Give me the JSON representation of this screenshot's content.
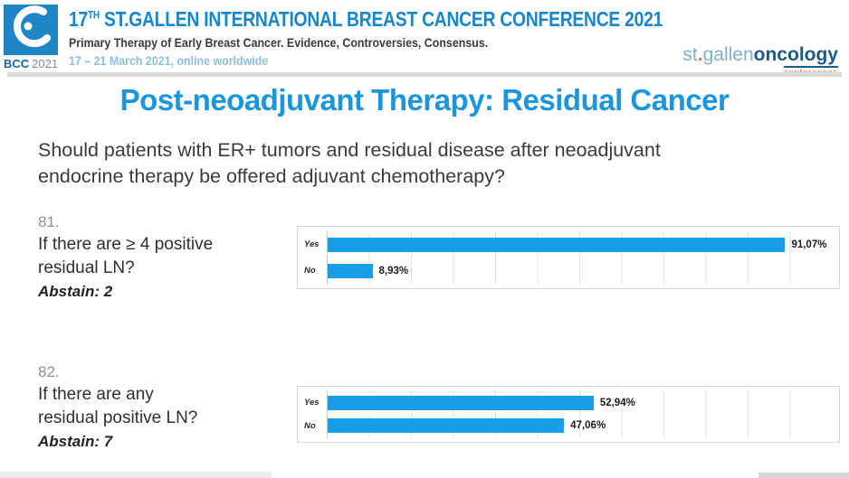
{
  "header": {
    "title_num": "17",
    "title_sup": "TH",
    "title_rest": " ST.GALLEN INTERNATIONAL BREAST CANCER CONFERENCE 2021",
    "subtitle": "Primary Therapy of Early Breast Cancer. Evidence, Controversies, Consensus.",
    "dates": "17 – 21 March 2021, online worldwide",
    "logo_bcc": "BCC",
    "logo_year": "2021",
    "brand_st": "st",
    "brand_dot": ".",
    "brand_gallen": "gallen",
    "brand_oncology": "oncology",
    "brand_conferences": "conferences"
  },
  "main": {
    "title": "Post-neoadjuvant Therapy: Residual Cancer",
    "question_line1": "Should patients with ER+ tumors and residual disease after neoadjuvant",
    "question_line2": "endocrine therapy be offered adjuvant chemotherapy?"
  },
  "polls": [
    {
      "number": "81.",
      "line1": "If there are ≥ 4 positive",
      "line2": "residual LN?",
      "abstain": "Abstain: 2"
    },
    {
      "number": "82.",
      "line1": "If there are any",
      "line2": "residual positive LN?",
      "abstain": "Abstain: 7"
    }
  ],
  "chart_data": [
    {
      "type": "bar",
      "orientation": "horizontal",
      "categories": [
        "Yes",
        "No"
      ],
      "values": [
        91.07,
        8.93
      ],
      "value_labels": [
        "91,07%",
        "8,93%"
      ],
      "xlim": [
        0,
        100
      ],
      "grid": true,
      "legend": "none",
      "bar_color": "#189ee6"
    },
    {
      "type": "bar",
      "orientation": "horizontal",
      "categories": [
        "Yes",
        "No"
      ],
      "values": [
        52.94,
        47.06
      ],
      "value_labels": [
        "52,94%",
        "47,06%"
      ],
      "xlim": [
        0,
        100
      ],
      "grid": true,
      "legend": "none",
      "bar_color": "#189ee6"
    }
  ],
  "colors": {
    "header_blue": "#1787c9",
    "date_blue": "#8cbede",
    "title_blue": "#1b96dc",
    "bar_blue": "#189ee6"
  }
}
